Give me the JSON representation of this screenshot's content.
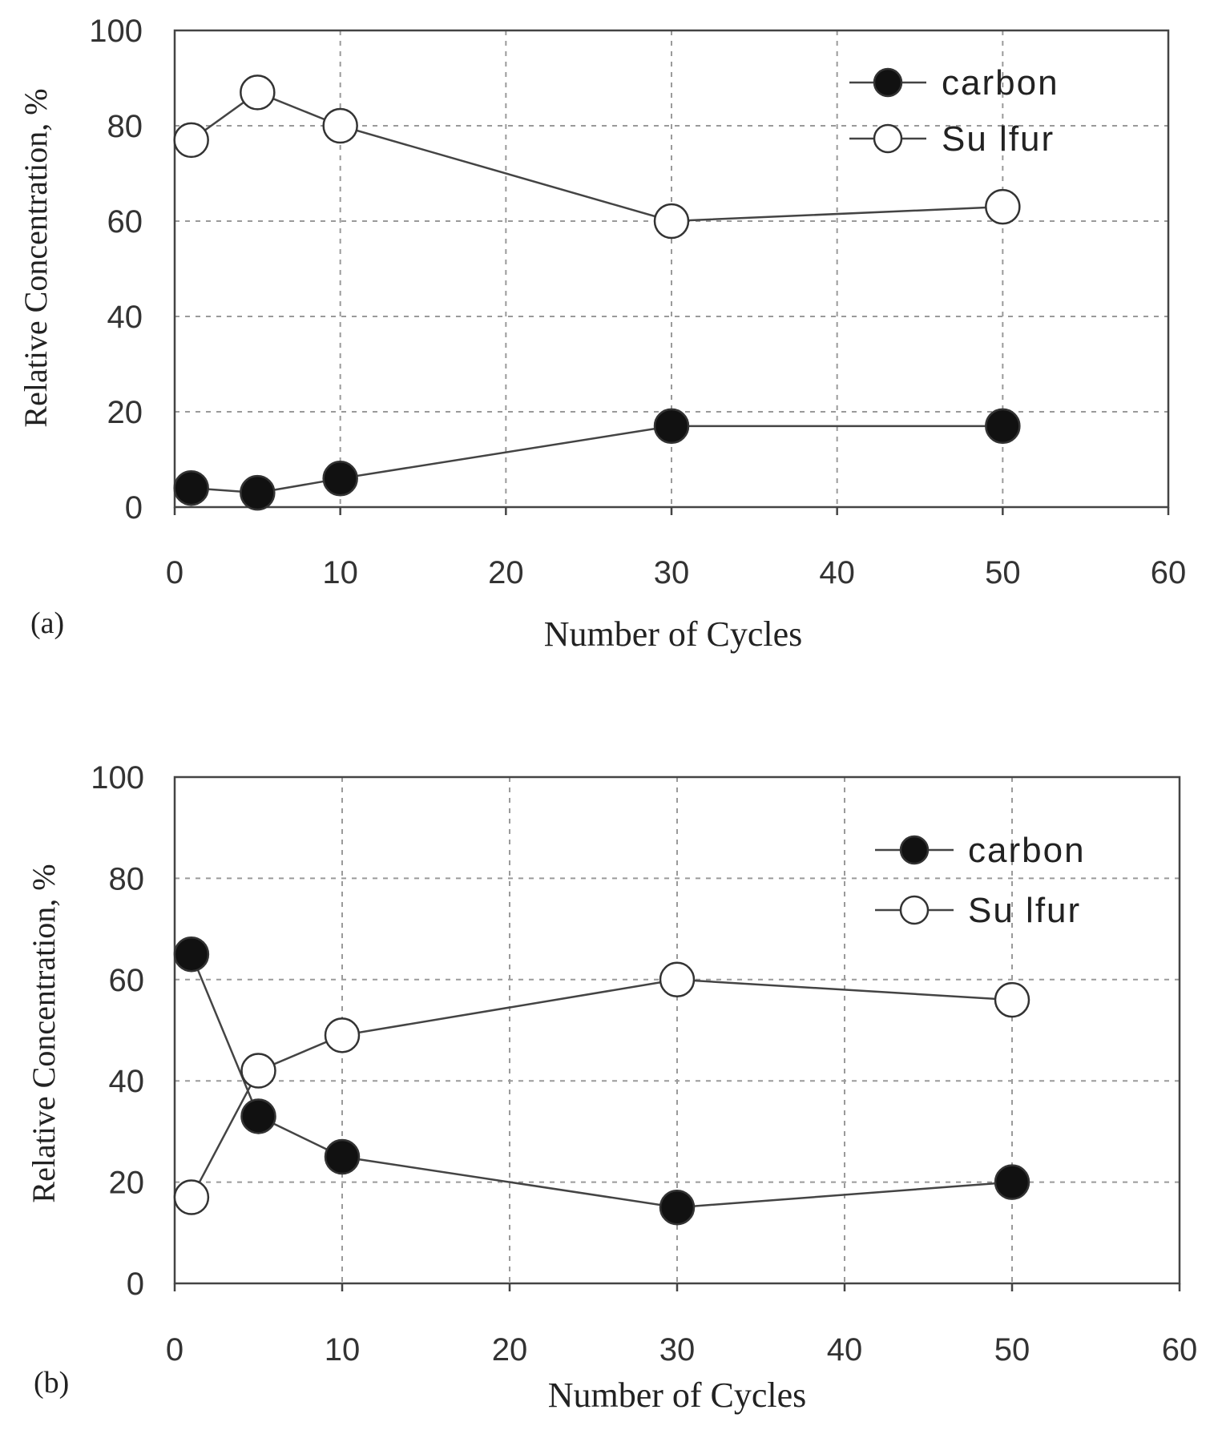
{
  "chart_data": [
    {
      "type": "line",
      "panel_label": "(a)",
      "xlabel": "Number of Cycles",
      "ylabel": "Relative Concentration, %",
      "xlim": [
        0,
        60
      ],
      "ylim": [
        0,
        100
      ],
      "xticks": [
        0,
        10,
        20,
        30,
        40,
        50,
        60
      ],
      "yticks": [
        0,
        20,
        40,
        60,
        80,
        100
      ],
      "grid": true,
      "legend_position": "top-right",
      "x": [
        1,
        5,
        10,
        30,
        50
      ],
      "series": [
        {
          "name": "carbon",
          "marker": "filled-circle",
          "values": [
            4,
            3,
            6,
            17,
            17
          ]
        },
        {
          "name": "Su lfur",
          "marker": "open-circle",
          "values": [
            77,
            87,
            80,
            60,
            63
          ]
        }
      ]
    },
    {
      "type": "line",
      "panel_label": "(b)",
      "xlabel": "Number of Cycles",
      "ylabel": "Relative Concentration, %",
      "xlim": [
        0,
        60
      ],
      "ylim": [
        0,
        100
      ],
      "xticks": [
        0,
        10,
        20,
        30,
        40,
        50,
        60
      ],
      "yticks": [
        0,
        20,
        40,
        60,
        80,
        100
      ],
      "grid": true,
      "legend_position": "top-right",
      "x": [
        1,
        5,
        10,
        30,
        50
      ],
      "series": [
        {
          "name": "carbon",
          "marker": "filled-circle",
          "values": [
            65,
            33,
            25,
            15,
            20
          ]
        },
        {
          "name": "Su lfur",
          "marker": "open-circle",
          "values": [
            17,
            42,
            49,
            60,
            56
          ]
        }
      ]
    }
  ]
}
